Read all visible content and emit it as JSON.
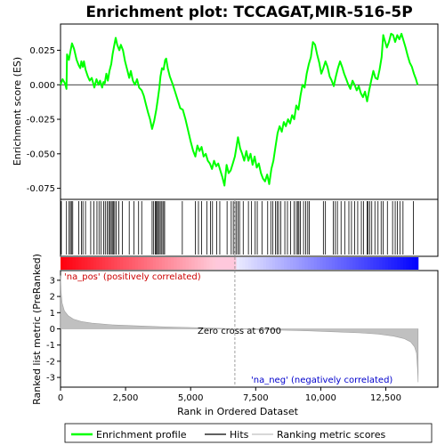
{
  "chart_data": {
    "type": "line",
    "title": "Enrichment plot: TCCAGAT,MIR-516-5P",
    "x_label": "Rank in Ordered Dataset",
    "x_range": [
      0,
      14500
    ],
    "x_ticks": [
      "0",
      "2,500",
      "5,000",
      "7,500",
      "10,000",
      "12,500"
    ],
    "x_tick_values": [
      0,
      2500,
      5000,
      7500,
      10000,
      12500
    ],
    "es_panel": {
      "y_label": "Enrichment score (ES)",
      "y_range": [
        -0.083,
        0.044
      ],
      "y_ticks": [
        "0.025",
        "0.000",
        "-0.025",
        "-0.050",
        "-0.075"
      ],
      "y_tick_values": [
        0.025,
        0.0,
        -0.025,
        -0.05,
        -0.075
      ],
      "series": {
        "name": "Enrichment profile",
        "color": "#00ff00",
        "points": [
          [
            0,
            0.0
          ],
          [
            80,
            0.004
          ],
          [
            170,
            0.001
          ],
          [
            230,
            -0.003
          ],
          [
            250,
            0.022
          ],
          [
            320,
            0.018
          ],
          [
            380,
            0.024
          ],
          [
            440,
            0.03
          ],
          [
            520,
            0.026
          ],
          [
            620,
            0.018
          ],
          [
            700,
            0.014
          ],
          [
            760,
            0.012
          ],
          [
            800,
            0.017
          ],
          [
            860,
            0.013
          ],
          [
            900,
            0.017
          ],
          [
            960,
            0.011
          ],
          [
            1050,
            0.006
          ],
          [
            1120,
            0.003
          ],
          [
            1200,
            0.005
          ],
          [
            1300,
            -0.002
          ],
          [
            1380,
            0.004
          ],
          [
            1460,
            0.0
          ],
          [
            1520,
            0.003
          ],
          [
            1600,
            -0.002
          ],
          [
            1650,
            0.002
          ],
          [
            1700,
            0.001
          ],
          [
            1760,
            0.008
          ],
          [
            1820,
            0.003
          ],
          [
            1880,
            0.01
          ],
          [
            1950,
            0.015
          ],
          [
            2000,
            0.022
          ],
          [
            2060,
            0.028
          ],
          [
            2120,
            0.034
          ],
          [
            2180,
            0.029
          ],
          [
            2260,
            0.025
          ],
          [
            2320,
            0.029
          ],
          [
            2400,
            0.025
          ],
          [
            2480,
            0.017
          ],
          [
            2560,
            0.011
          ],
          [
            2640,
            0.005
          ],
          [
            2700,
            0.01
          ],
          [
            2780,
            0.003
          ],
          [
            2860,
            0.0
          ],
          [
            2940,
            0.004
          ],
          [
            3020,
            -0.002
          ],
          [
            3120,
            -0.004
          ],
          [
            3200,
            -0.008
          ],
          [
            3280,
            -0.014
          ],
          [
            3360,
            -0.02
          ],
          [
            3440,
            -0.025
          ],
          [
            3520,
            -0.032
          ],
          [
            3600,
            -0.026
          ],
          [
            3680,
            -0.018
          ],
          [
            3740,
            -0.01
          ],
          [
            3800,
            -0.002
          ],
          [
            3840,
            0.006
          ],
          [
            3900,
            0.012
          ],
          [
            3960,
            0.011
          ],
          [
            4020,
            0.018
          ],
          [
            4060,
            0.019
          ],
          [
            4120,
            0.012
          ],
          [
            4200,
            0.006
          ],
          [
            4300,
            0.001
          ],
          [
            4400,
            -0.005
          ],
          [
            4500,
            -0.011
          ],
          [
            4600,
            -0.017
          ],
          [
            4700,
            -0.018
          ],
          [
            4800,
            -0.025
          ],
          [
            4900,
            -0.033
          ],
          [
            5000,
            -0.041
          ],
          [
            5100,
            -0.048
          ],
          [
            5180,
            -0.052
          ],
          [
            5260,
            -0.044
          ],
          [
            5340,
            -0.048
          ],
          [
            5420,
            -0.045
          ],
          [
            5500,
            -0.052
          ],
          [
            5580,
            -0.05
          ],
          [
            5660,
            -0.055
          ],
          [
            5740,
            -0.057
          ],
          [
            5820,
            -0.061
          ],
          [
            5900,
            -0.055
          ],
          [
            5980,
            -0.059
          ],
          [
            6060,
            -0.057
          ],
          [
            6140,
            -0.062
          ],
          [
            6220,
            -0.067
          ],
          [
            6300,
            -0.073
          ],
          [
            6380,
            -0.058
          ],
          [
            6460,
            -0.064
          ],
          [
            6540,
            -0.062
          ],
          [
            6620,
            -0.057
          ],
          [
            6700,
            -0.052
          ],
          [
            6760,
            -0.045
          ],
          [
            6820,
            -0.038
          ],
          [
            6900,
            -0.046
          ],
          [
            6980,
            -0.05
          ],
          [
            7060,
            -0.055
          ],
          [
            7140,
            -0.048
          ],
          [
            7220,
            -0.055
          ],
          [
            7300,
            -0.05
          ],
          [
            7380,
            -0.058
          ],
          [
            7460,
            -0.052
          ],
          [
            7540,
            -0.06
          ],
          [
            7620,
            -0.057
          ],
          [
            7700,
            -0.064
          ],
          [
            7780,
            -0.068
          ],
          [
            7860,
            -0.07
          ],
          [
            7940,
            -0.065
          ],
          [
            8020,
            -0.072
          ],
          [
            8100,
            -0.061
          ],
          [
            8180,
            -0.055
          ],
          [
            8260,
            -0.045
          ],
          [
            8340,
            -0.035
          ],
          [
            8420,
            -0.03
          ],
          [
            8500,
            -0.034
          ],
          [
            8580,
            -0.027
          ],
          [
            8660,
            -0.03
          ],
          [
            8740,
            -0.025
          ],
          [
            8820,
            -0.028
          ],
          [
            8900,
            -0.022
          ],
          [
            8980,
            -0.025
          ],
          [
            9060,
            -0.015
          ],
          [
            9140,
            -0.018
          ],
          [
            9220,
            -0.008
          ],
          [
            9300,
            0.0
          ],
          [
            9380,
            -0.002
          ],
          [
            9460,
            0.008
          ],
          [
            9540,
            0.015
          ],
          [
            9620,
            0.02
          ],
          [
            9700,
            0.031
          ],
          [
            9780,
            0.029
          ],
          [
            9860,
            0.022
          ],
          [
            9940,
            0.016
          ],
          [
            10020,
            0.008
          ],
          [
            10100,
            0.012
          ],
          [
            10180,
            0.017
          ],
          [
            10260,
            0.013
          ],
          [
            10340,
            0.006
          ],
          [
            10420,
            0.003
          ],
          [
            10500,
            -0.001
          ],
          [
            10580,
            0.006
          ],
          [
            10660,
            0.012
          ],
          [
            10740,
            0.017
          ],
          [
            10820,
            0.013
          ],
          [
            10900,
            0.008
          ],
          [
            10980,
            0.004
          ],
          [
            11060,
            0.0
          ],
          [
            11140,
            -0.003
          ],
          [
            11220,
            0.003
          ],
          [
            11300,
            0.0
          ],
          [
            11380,
            -0.004
          ],
          [
            11460,
            -0.001
          ],
          [
            11540,
            -0.006
          ],
          [
            11620,
            -0.009
          ],
          [
            11700,
            -0.005
          ],
          [
            11780,
            -0.012
          ],
          [
            11860,
            -0.004
          ],
          [
            11940,
            0.003
          ],
          [
            12020,
            0.01
          ],
          [
            12100,
            0.005
          ],
          [
            12180,
            0.004
          ],
          [
            12260,
            0.011
          ],
          [
            12340,
            0.02
          ],
          [
            12400,
            0.036
          ],
          [
            12460,
            0.032
          ],
          [
            12540,
            0.027
          ],
          [
            12620,
            0.031
          ],
          [
            12700,
            0.037
          ],
          [
            12780,
            0.036
          ],
          [
            12860,
            0.031
          ],
          [
            12940,
            0.036
          ],
          [
            13020,
            0.033
          ],
          [
            13100,
            0.037
          ],
          [
            13180,
            0.032
          ],
          [
            13260,
            0.027
          ],
          [
            13340,
            0.021
          ],
          [
            13420,
            0.016
          ],
          [
            13500,
            0.013
          ],
          [
            13580,
            0.008
          ],
          [
            13660,
            0.004
          ],
          [
            13720,
            0.0
          ]
        ]
      }
    },
    "hits": {
      "name": "Hits",
      "ranks": [
        30,
        230,
        330,
        380,
        420,
        470,
        700,
        800,
        860,
        960,
        1160,
        1280,
        1400,
        1480,
        1560,
        1660,
        1720,
        1790,
        1850,
        1900,
        1950,
        1990,
        2030,
        2080,
        2140,
        2240,
        2380,
        2640,
        2820,
        3000,
        3120,
        3520,
        3580,
        3640,
        3680,
        3720,
        3760,
        3800,
        3860,
        3900,
        3960,
        4000,
        4680,
        5180,
        5300,
        5420,
        5620,
        5760,
        5840,
        6000,
        6120,
        6400,
        6560,
        6640,
        6700,
        6760,
        6820,
        6880,
        7020,
        7220,
        7340,
        7480,
        7560,
        7740,
        7960,
        8080,
        8160,
        8260,
        8320,
        8380,
        8460,
        8620,
        8720,
        8840,
        8980,
        9060,
        9120,
        9160,
        9220,
        9340,
        9420,
        9500,
        9560,
        10100,
        10180,
        10480,
        10560,
        10640,
        10780,
        10920,
        11080,
        11180,
        11300,
        11420,
        11560,
        11640,
        11780,
        11820,
        11880,
        11960,
        12080,
        12200,
        12320,
        12400,
        12560,
        12760,
        12860,
        12940,
        13040,
        13160,
        13560
      ]
    },
    "metric_panel": {
      "name": "Ranking metric scores",
      "y_label": "Ranked list metric (PreRanked)",
      "y_range": [
        -3.6,
        3.6
      ],
      "y_ticks": [
        "3",
        "2",
        "1",
        "0",
        "-1",
        "-2",
        "-3"
      ],
      "y_tick_values": [
        3,
        2,
        1,
        0,
        -1,
        -2,
        -3
      ],
      "fill_color": "#c0c0c0",
      "curve": [
        [
          0,
          3.3
        ],
        [
          20,
          2.3
        ],
        [
          60,
          1.6
        ],
        [
          150,
          1.1
        ],
        [
          300,
          0.8
        ],
        [
          500,
          0.6
        ],
        [
          800,
          0.45
        ],
        [
          1200,
          0.35
        ],
        [
          2000,
          0.25
        ],
        [
          3000,
          0.18
        ],
        [
          4000,
          0.12
        ],
        [
          5000,
          0.08
        ],
        [
          6000,
          0.04
        ],
        [
          6700,
          0.0
        ],
        [
          7500,
          -0.04
        ],
        [
          8500,
          -0.08
        ],
        [
          9500,
          -0.12
        ],
        [
          10500,
          -0.18
        ],
        [
          11500,
          -0.25
        ],
        [
          12200,
          -0.32
        ],
        [
          12800,
          -0.45
        ],
        [
          13200,
          -0.6
        ],
        [
          13450,
          -0.8
        ],
        [
          13600,
          -1.1
        ],
        [
          13680,
          -1.5
        ],
        [
          13720,
          -2.5
        ],
        [
          13740,
          -3.3
        ]
      ],
      "zero_cross_rank": 6700,
      "zero_cross_label": "Zero cross at 6700",
      "pos_label": "'na_pos' (positively correlated)",
      "neg_label": "'na_neg' (negatively correlated)",
      "pos_color": "#cc0000",
      "neg_color": "#0000cc"
    },
    "legend": {
      "placement": "bottom",
      "items": [
        {
          "label": "Enrichment profile",
          "color": "#00ff00"
        },
        {
          "label": "Hits",
          "color": "#000000"
        },
        {
          "label": "Ranking metric scores",
          "color": "#c0c0c0"
        }
      ]
    }
  }
}
